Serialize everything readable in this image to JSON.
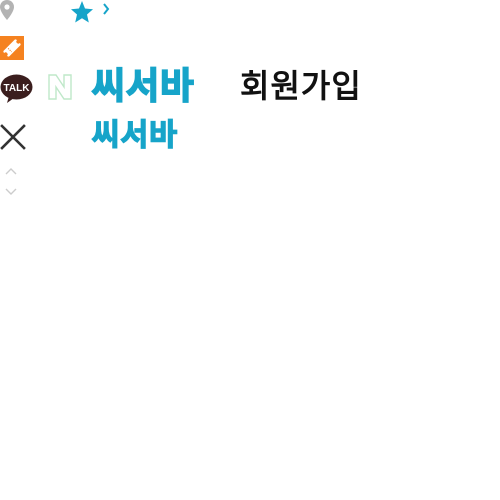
{
  "icons": {
    "location": "map-pin-icon",
    "coupon": "ticket-icon",
    "kakao": "kakaotalk-icon",
    "naver": "naver-icon",
    "close": "close-icon",
    "scroll_up": "chevron-up-icon",
    "scroll_down": "chevron-down-icon",
    "favorite": "star-icon",
    "next": "chevron-right-icon"
  },
  "kakao_label": "TALK",
  "brand": {
    "name": "씨서바",
    "sub_name": "씨서바"
  },
  "page": {
    "title": "회원가입"
  },
  "colors": {
    "brand": "#16a4c9",
    "ticket": "#f58220",
    "kakao_bg": "#3b1e1e",
    "naver_green": "#03c75a",
    "pin": "#b3b3b3",
    "close": "#333333"
  }
}
